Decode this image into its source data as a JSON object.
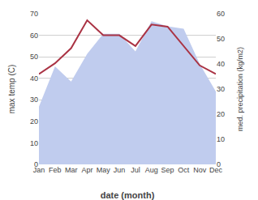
{
  "chart_data": {
    "type": "line",
    "x_label": "date (month)",
    "y_label": "max temp (C)",
    "y2_label": "med. precipitation (kg/m2)",
    "categories": [
      "Jan",
      "Feb",
      "Mar",
      "Apr",
      "May",
      "Jun",
      "Jul",
      "Aug",
      "Sep",
      "Oct",
      "Nov",
      "Dec"
    ],
    "series": [
      {
        "type": "area",
        "axis": "y2",
        "color": "#c0ccee",
        "values": [
          23,
          39,
          33,
          44,
          52,
          52,
          45,
          57,
          55,
          54,
          40,
          29
        ]
      },
      {
        "type": "line",
        "color": "#aa3344",
        "values": [
          42,
          47,
          54,
          67,
          60,
          60,
          55,
          65,
          64,
          55,
          46,
          42
        ]
      }
    ],
    "ylim": [
      0,
      70
    ],
    "yticks": [
      0,
      10,
      20,
      30,
      40,
      50,
      60,
      70
    ],
    "y2lim": [
      0,
      60
    ],
    "y2ticks": [
      0,
      10,
      20,
      30,
      40,
      50,
      60
    ],
    "grid": true
  }
}
